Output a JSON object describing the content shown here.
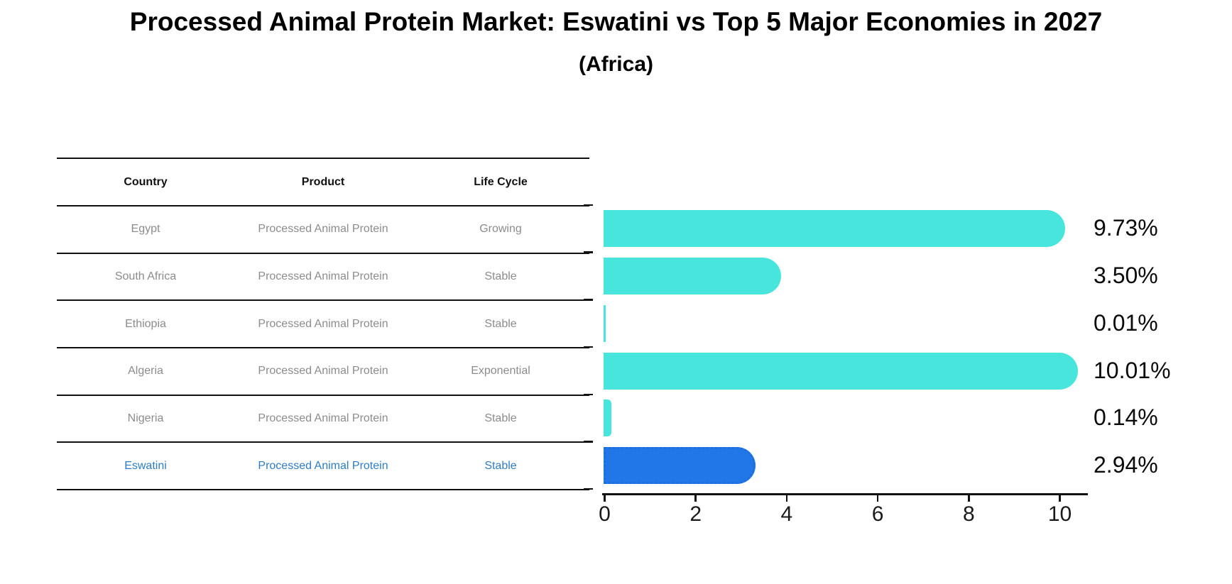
{
  "title": "Processed Animal Protein Market: Eswatini vs Top 5 Major Economies in 2027",
  "subtitle": "(Africa)",
  "table": {
    "headers": {
      "country": "Country",
      "product": "Product",
      "life_cycle": "Life Cycle"
    },
    "rows": [
      {
        "country": "Egypt",
        "product": "Processed Animal Protein",
        "life_cycle": "Growing"
      },
      {
        "country": "South Africa",
        "product": "Processed Animal Protein",
        "life_cycle": "Stable"
      },
      {
        "country": "Ethiopia",
        "product": "Processed Animal Protein",
        "life_cycle": "Stable"
      },
      {
        "country": "Algeria",
        "product": "Processed Animal Protein",
        "life_cycle": "Exponential"
      },
      {
        "country": "Nigeria",
        "product": "Processed Animal Protein",
        "life_cycle": "Stable"
      },
      {
        "country": "Eswatini",
        "product": "Processed Animal Protein",
        "life_cycle": "Stable"
      }
    ],
    "highlight_row": "Eswatini"
  },
  "chart_data": {
    "type": "bar",
    "orientation": "horizontal",
    "categories": [
      "Egypt",
      "South Africa",
      "Ethiopia",
      "Algeria",
      "Nigeria",
      "Eswatini"
    ],
    "values": [
      9.73,
      3.5,
      0.01,
      10.01,
      0.14,
      2.94
    ],
    "value_labels": [
      "9.73%",
      "3.50%",
      "0.01%",
      "10.01%",
      "0.14%",
      "2.94%"
    ],
    "xticks": [
      0,
      2,
      4,
      6,
      8,
      10
    ],
    "xtick_labels": [
      "0",
      "2",
      "4",
      "6",
      "8",
      "10"
    ],
    "xlim": [
      0,
      10.6
    ],
    "grid": false,
    "legend": "none",
    "bar_color": "#48e5dc",
    "highlight_color": "#2277e8",
    "highlight_index": 5,
    "highlight_style": "dotted-border"
  }
}
